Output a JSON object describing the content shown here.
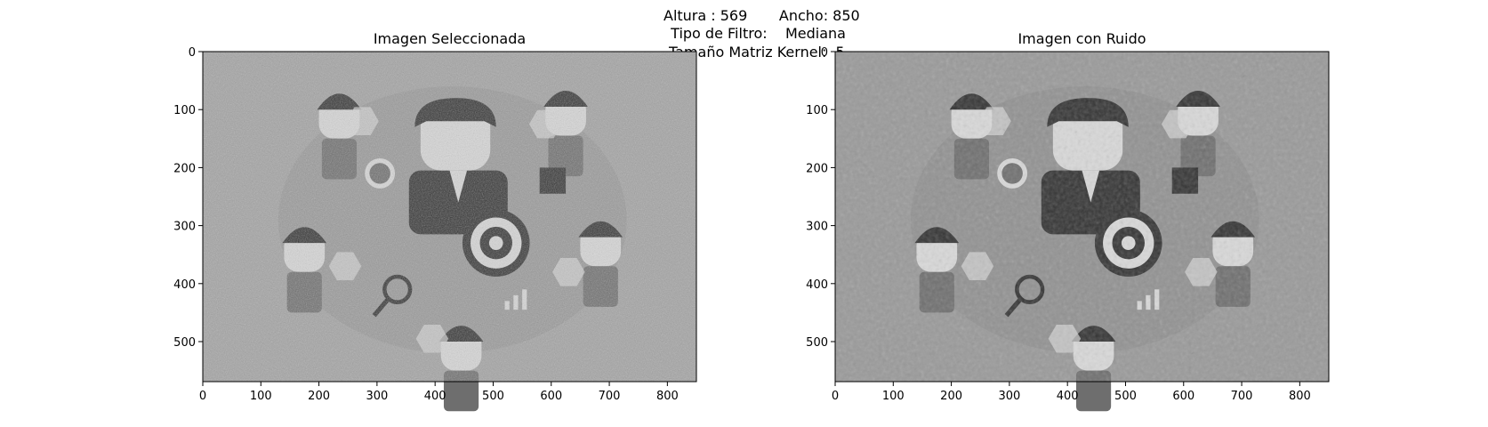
{
  "figure": {
    "suptitle_lines": [
      "Altura : 569       Ancho: 850",
      "  Tipo de Filtro:    Mediana",
      "Tamaño Matriz Kernel:  5"
    ]
  },
  "chart_data": [
    {
      "type": "image",
      "title": "Imagen Seleccionada",
      "image_content": "grayscale business infographic illustration with heavy speckle noise",
      "xlim": [
        0,
        850
      ],
      "ylim": [
        569,
        0
      ],
      "xticks": [
        0,
        100,
        200,
        300,
        400,
        500,
        600,
        700,
        800
      ],
      "yticks": [
        0,
        100,
        200,
        300,
        400,
        500
      ],
      "noise": "speckle"
    },
    {
      "type": "image",
      "title": "Imagen con Ruido",
      "image_content": "same grayscale business infographic after median filtering",
      "xlim": [
        0,
        850
      ],
      "ylim": [
        569,
        0
      ],
      "xticks": [
        0,
        100,
        200,
        300,
        400,
        500,
        600,
        700,
        800
      ],
      "yticks": [
        0,
        100,
        200,
        300,
        400,
        500
      ],
      "noise": "median-smoothed"
    }
  ],
  "colors": {
    "background_noisy": "#a3a3a3",
    "background_filtered": "#999999",
    "dark_shape": "#333333",
    "mid_shape": "#6e6e6e",
    "light_shape": "#d9d9d9"
  }
}
